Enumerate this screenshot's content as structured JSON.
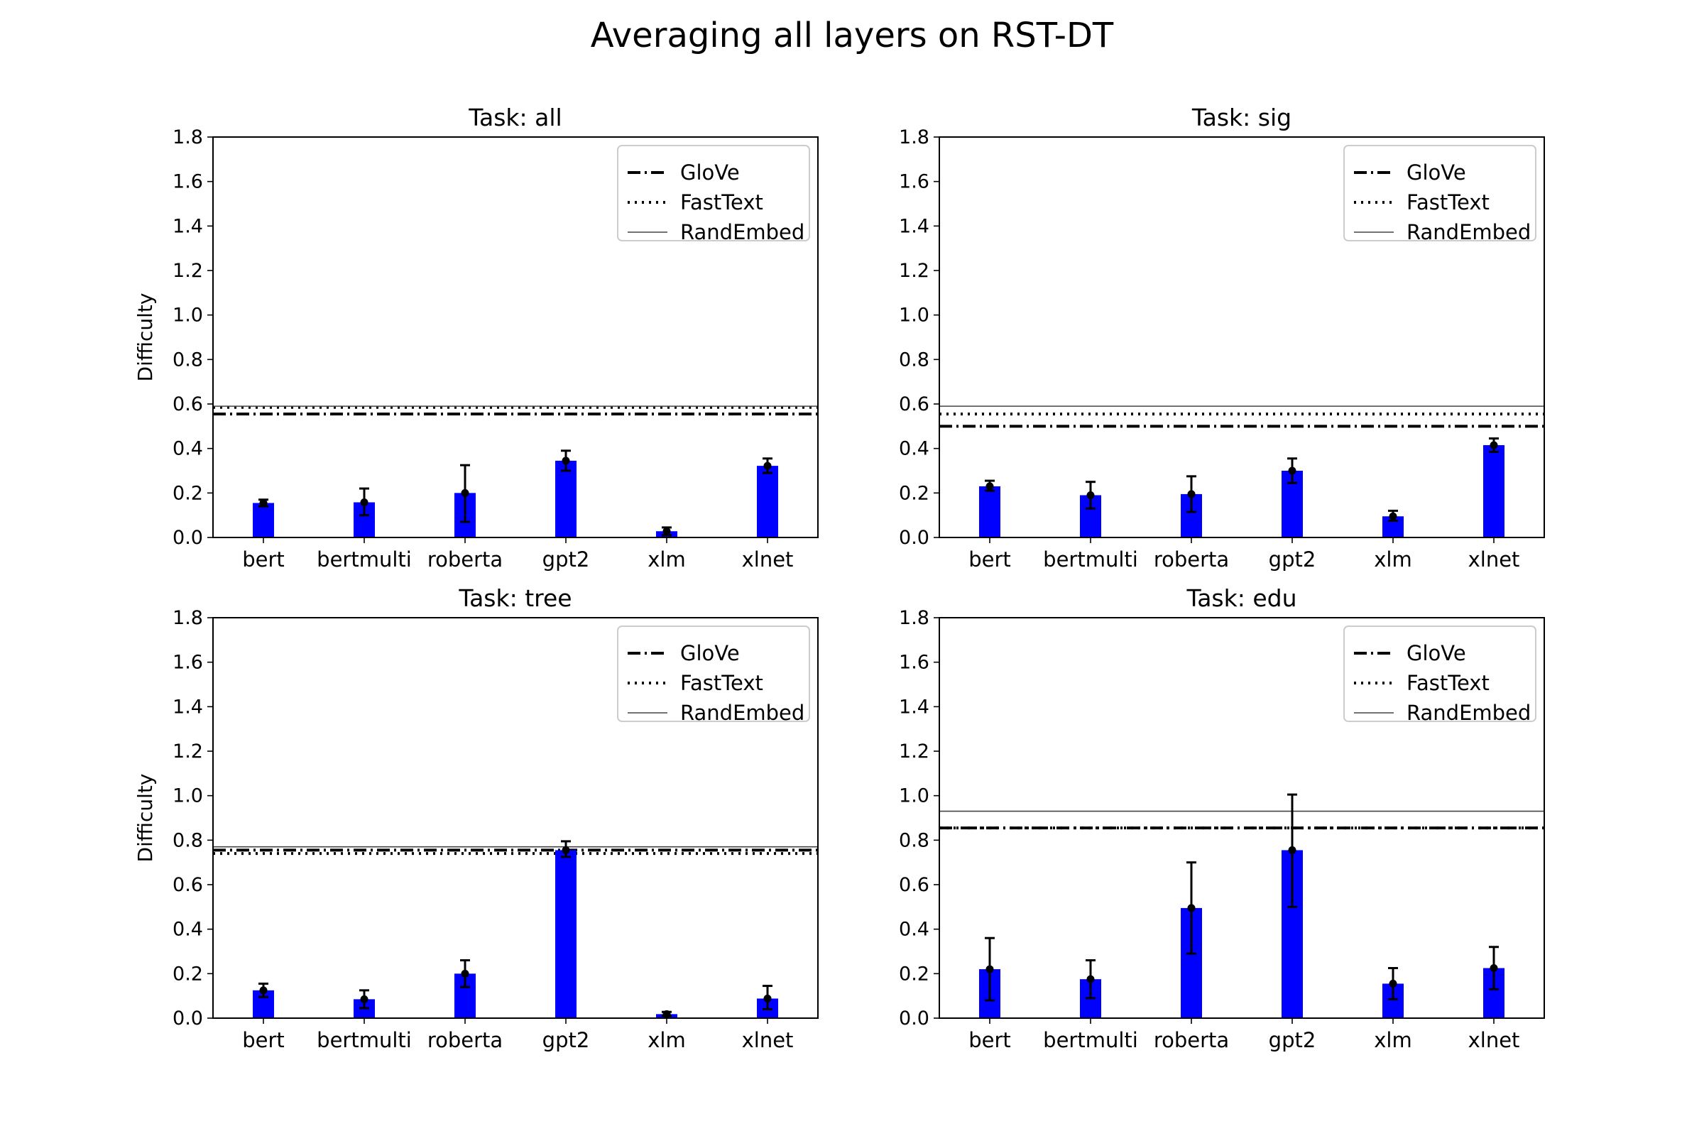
{
  "figure": {
    "title": "Averaging all layers on RST-DT"
  },
  "chart_data": [
    {
      "type": "bar",
      "title": "Task: all",
      "ylabel": "Difficulty",
      "xlabel": "",
      "ylim": [
        0,
        1.8
      ],
      "yticks": [
        0.0,
        0.2,
        0.4,
        0.6,
        0.8,
        1.0,
        1.2,
        1.4,
        1.6,
        1.8
      ],
      "ytick_labels": [
        "0.0",
        "0.2",
        "0.4",
        "0.6",
        "0.8",
        "1.0",
        "1.2",
        "1.4",
        "1.6",
        "1.8"
      ],
      "categories": [
        "bert",
        "bertmulti",
        "roberta",
        "gpt2",
        "xlm",
        "xlnet"
      ],
      "values": [
        0.155,
        0.158,
        0.2,
        0.345,
        0.028,
        0.322
      ],
      "error_low": [
        0.14,
        0.1,
        0.07,
        0.3,
        0.01,
        0.29
      ],
      "error_high": [
        0.17,
        0.22,
        0.325,
        0.39,
        0.045,
        0.355
      ],
      "bar_color": "#0000ff",
      "baselines": [
        {
          "name": "GloVe",
          "value": 0.555,
          "style": "dashdot"
        },
        {
          "name": "FastText",
          "value": 0.585,
          "style": "dotted"
        },
        {
          "name": "RandEmbed",
          "value": 0.59,
          "style": "solid"
        }
      ],
      "legend_position": "upper-right"
    },
    {
      "type": "bar",
      "title": "Task: sig",
      "ylabel": "",
      "xlabel": "",
      "ylim": [
        0,
        1.8
      ],
      "yticks": [
        0.0,
        0.2,
        0.4,
        0.6,
        0.8,
        1.0,
        1.2,
        1.4,
        1.6,
        1.8
      ],
      "ytick_labels": [
        "0.0",
        "0.2",
        "0.4",
        "0.6",
        "0.8",
        "1.0",
        "1.2",
        "1.4",
        "1.6",
        "1.8"
      ],
      "categories": [
        "bert",
        "bertmulti",
        "roberta",
        "gpt2",
        "xlm",
        "xlnet"
      ],
      "values": [
        0.23,
        0.19,
        0.195,
        0.3,
        0.095,
        0.415
      ],
      "error_low": [
        0.21,
        0.13,
        0.115,
        0.245,
        0.075,
        0.385
      ],
      "error_high": [
        0.255,
        0.25,
        0.275,
        0.355,
        0.12,
        0.445
      ],
      "bar_color": "#0000ff",
      "baselines": [
        {
          "name": "GloVe",
          "value": 0.5,
          "style": "dashdot"
        },
        {
          "name": "FastText",
          "value": 0.555,
          "style": "dotted"
        },
        {
          "name": "RandEmbed",
          "value": 0.59,
          "style": "solid"
        }
      ],
      "legend_position": "upper-right"
    },
    {
      "type": "bar",
      "title": "Task: tree",
      "ylabel": "Difficulty",
      "xlabel": "",
      "ylim": [
        0,
        1.8
      ],
      "yticks": [
        0.0,
        0.2,
        0.4,
        0.6,
        0.8,
        1.0,
        1.2,
        1.4,
        1.6,
        1.8
      ],
      "ytick_labels": [
        "0.0",
        "0.2",
        "0.4",
        "0.6",
        "0.8",
        "1.0",
        "1.2",
        "1.4",
        "1.6",
        "1.8"
      ],
      "categories": [
        "bert",
        "bertmulti",
        "roberta",
        "gpt2",
        "xlm",
        "xlnet"
      ],
      "values": [
        0.125,
        0.085,
        0.2,
        0.755,
        0.018,
        0.088
      ],
      "error_low": [
        0.095,
        0.045,
        0.14,
        0.725,
        0.01,
        0.04
      ],
      "error_high": [
        0.155,
        0.125,
        0.26,
        0.795,
        0.028,
        0.145
      ],
      "bar_color": "#0000ff",
      "baselines": [
        {
          "name": "GloVe",
          "value": 0.755,
          "style": "dashdot"
        },
        {
          "name": "FastText",
          "value": 0.74,
          "style": "dotted"
        },
        {
          "name": "RandEmbed",
          "value": 0.77,
          "style": "solid"
        }
      ],
      "legend_position": "upper-right"
    },
    {
      "type": "bar",
      "title": "Task: edu",
      "ylabel": "",
      "xlabel": "",
      "ylim": [
        0,
        1.8
      ],
      "yticks": [
        0.0,
        0.2,
        0.4,
        0.6,
        0.8,
        1.0,
        1.2,
        1.4,
        1.6,
        1.8
      ],
      "ytick_labels": [
        "0.0",
        "0.2",
        "0.4",
        "0.6",
        "0.8",
        "1.0",
        "1.2",
        "1.4",
        "1.6",
        "1.8"
      ],
      "categories": [
        "bert",
        "bertmulti",
        "roberta",
        "gpt2",
        "xlm",
        "xlnet"
      ],
      "values": [
        0.22,
        0.175,
        0.495,
        0.755,
        0.155,
        0.225
      ],
      "error_low": [
        0.08,
        0.09,
        0.29,
        0.5,
        0.085,
        0.13
      ],
      "error_high": [
        0.36,
        0.26,
        0.7,
        1.005,
        0.225,
        0.32
      ],
      "bar_color": "#0000ff",
      "baselines": [
        {
          "name": "GloVe",
          "value": 0.855,
          "style": "dashdot"
        },
        {
          "name": "FastText",
          "value": 0.855,
          "style": "dotted"
        },
        {
          "name": "RandEmbed",
          "value": 0.93,
          "style": "solid"
        }
      ],
      "legend_position": "upper-right"
    }
  ]
}
